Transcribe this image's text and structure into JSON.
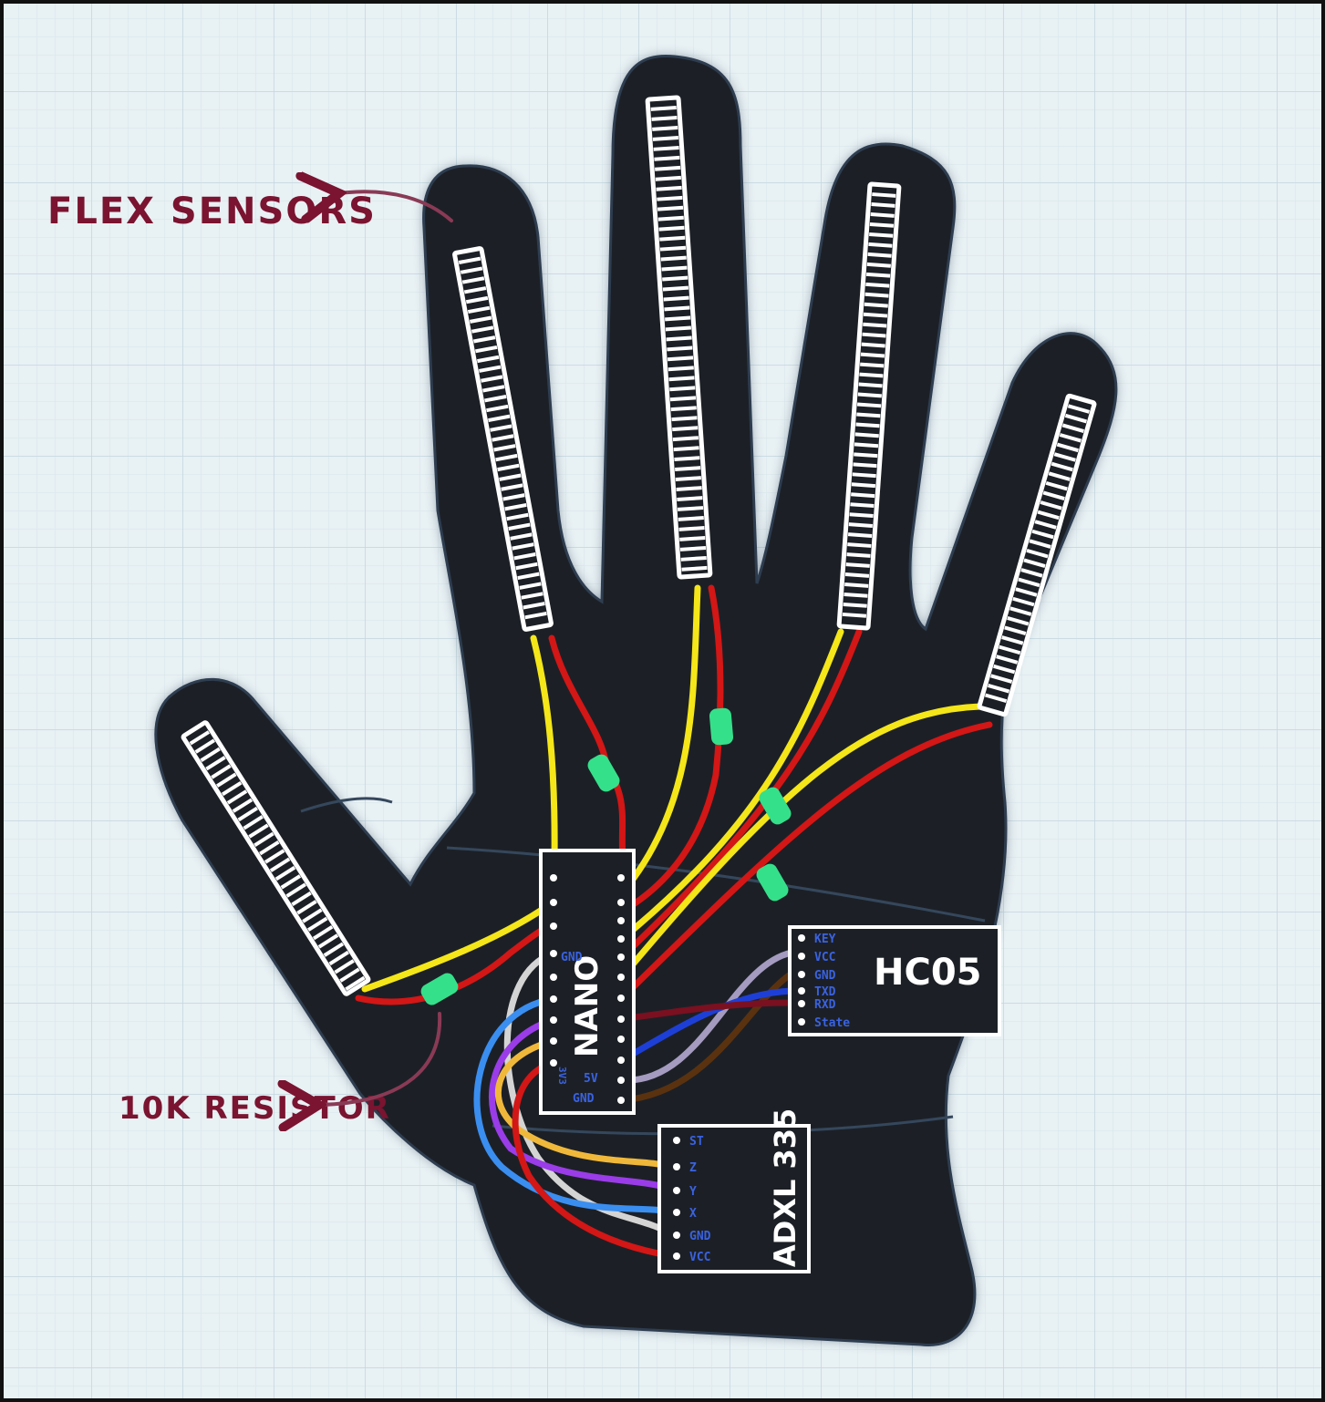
{
  "annotations": {
    "flex_label": "FLEX SENSORS",
    "resistor_label": "10K RESISTOR"
  },
  "nano": {
    "name": "NANO",
    "pin_gnd_top": "GND",
    "pin_3v3": "3V3",
    "pin_5v": "5V",
    "pin_gnd_bottom": "GND"
  },
  "hc05": {
    "name": "HC05",
    "pins": [
      "KEY",
      "VCC",
      "GND",
      "TXD",
      "RXD",
      "State"
    ]
  },
  "adxl": {
    "name": "ADXL 335",
    "pins": [
      "ST",
      "Z",
      "Y",
      "X",
      "GND",
      "VCC"
    ]
  },
  "colors": {
    "background": "#e8f1f4",
    "grid": "#cbdde4",
    "hand": "#1c2026",
    "hand_edge": "#3c5068",
    "wire_yellow": "#f4e618",
    "wire_red": "#d31616",
    "resistor": "#35e08a",
    "label_maroon": "#7a1430",
    "pin_label": "#1f4ed8"
  }
}
